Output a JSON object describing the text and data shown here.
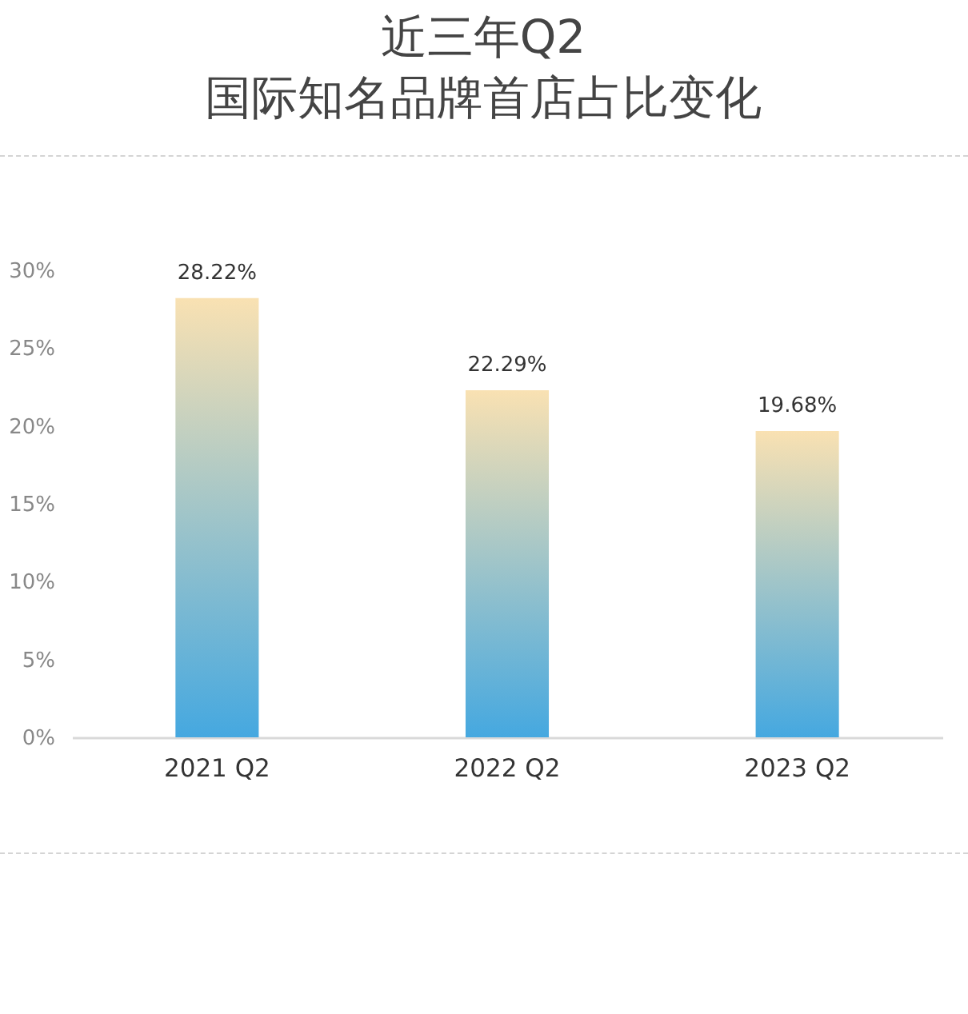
{
  "chart_data": {
    "type": "bar",
    "title": "近三年Q2\n国际知名品牌首店占比变化",
    "categories": [
      "2021 Q2",
      "2022 Q2",
      "2023 Q2"
    ],
    "values": [
      28.22,
      22.29,
      19.68
    ],
    "color": "#45a8e0",
    "value_labels": [
      "28.22%",
      "22.29%",
      "19.68%"
    ],
    "ylim": [
      0,
      30
    ],
    "yticks": [
      {
        "value": 0,
        "label": "0%"
      },
      {
        "value": 5,
        "label": "5%"
      },
      {
        "value": 10,
        "label": "10%"
      },
      {
        "value": 15,
        "label": "15%"
      },
      {
        "value": 20,
        "label": "20%"
      },
      {
        "value": 25,
        "label": "25%"
      },
      {
        "value": 30,
        "label": "30%"
      }
    ]
  }
}
